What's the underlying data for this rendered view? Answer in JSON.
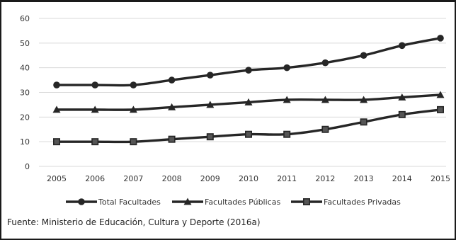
{
  "chart_data": {
    "type": "line",
    "x": [
      "2005",
      "2006",
      "2007",
      "2008",
      "2009",
      "2010",
      "2011",
      "2012",
      "2013",
      "2014",
      "2015"
    ],
    "series": [
      {
        "name": "Total Facultades",
        "marker": "circle",
        "values": [
          33,
          33,
          33,
          35,
          37,
          39,
          40,
          42,
          45,
          49,
          52
        ]
      },
      {
        "name": "Facultades Públicas",
        "marker": "triangle",
        "values": [
          23,
          23,
          23,
          24,
          25,
          26,
          27,
          27,
          27,
          28,
          29
        ]
      },
      {
        "name": "Facultades Privadas",
        "marker": "square",
        "values": [
          10,
          10,
          10,
          11,
          12,
          13,
          13,
          15,
          18,
          21,
          23
        ]
      }
    ],
    "ylim": [
      0,
      60
    ],
    "yticks": [
      0,
      10,
      20,
      30,
      40,
      50,
      60
    ],
    "grid": true,
    "legend": "bottom",
    "colors": {
      "line": "#262626",
      "square_fill": "#555555",
      "grid": "#d9d9d9",
      "text": "#333333"
    }
  },
  "source": "Fuente: Ministerio de Educación, Cultura y Deporte (2016a)"
}
